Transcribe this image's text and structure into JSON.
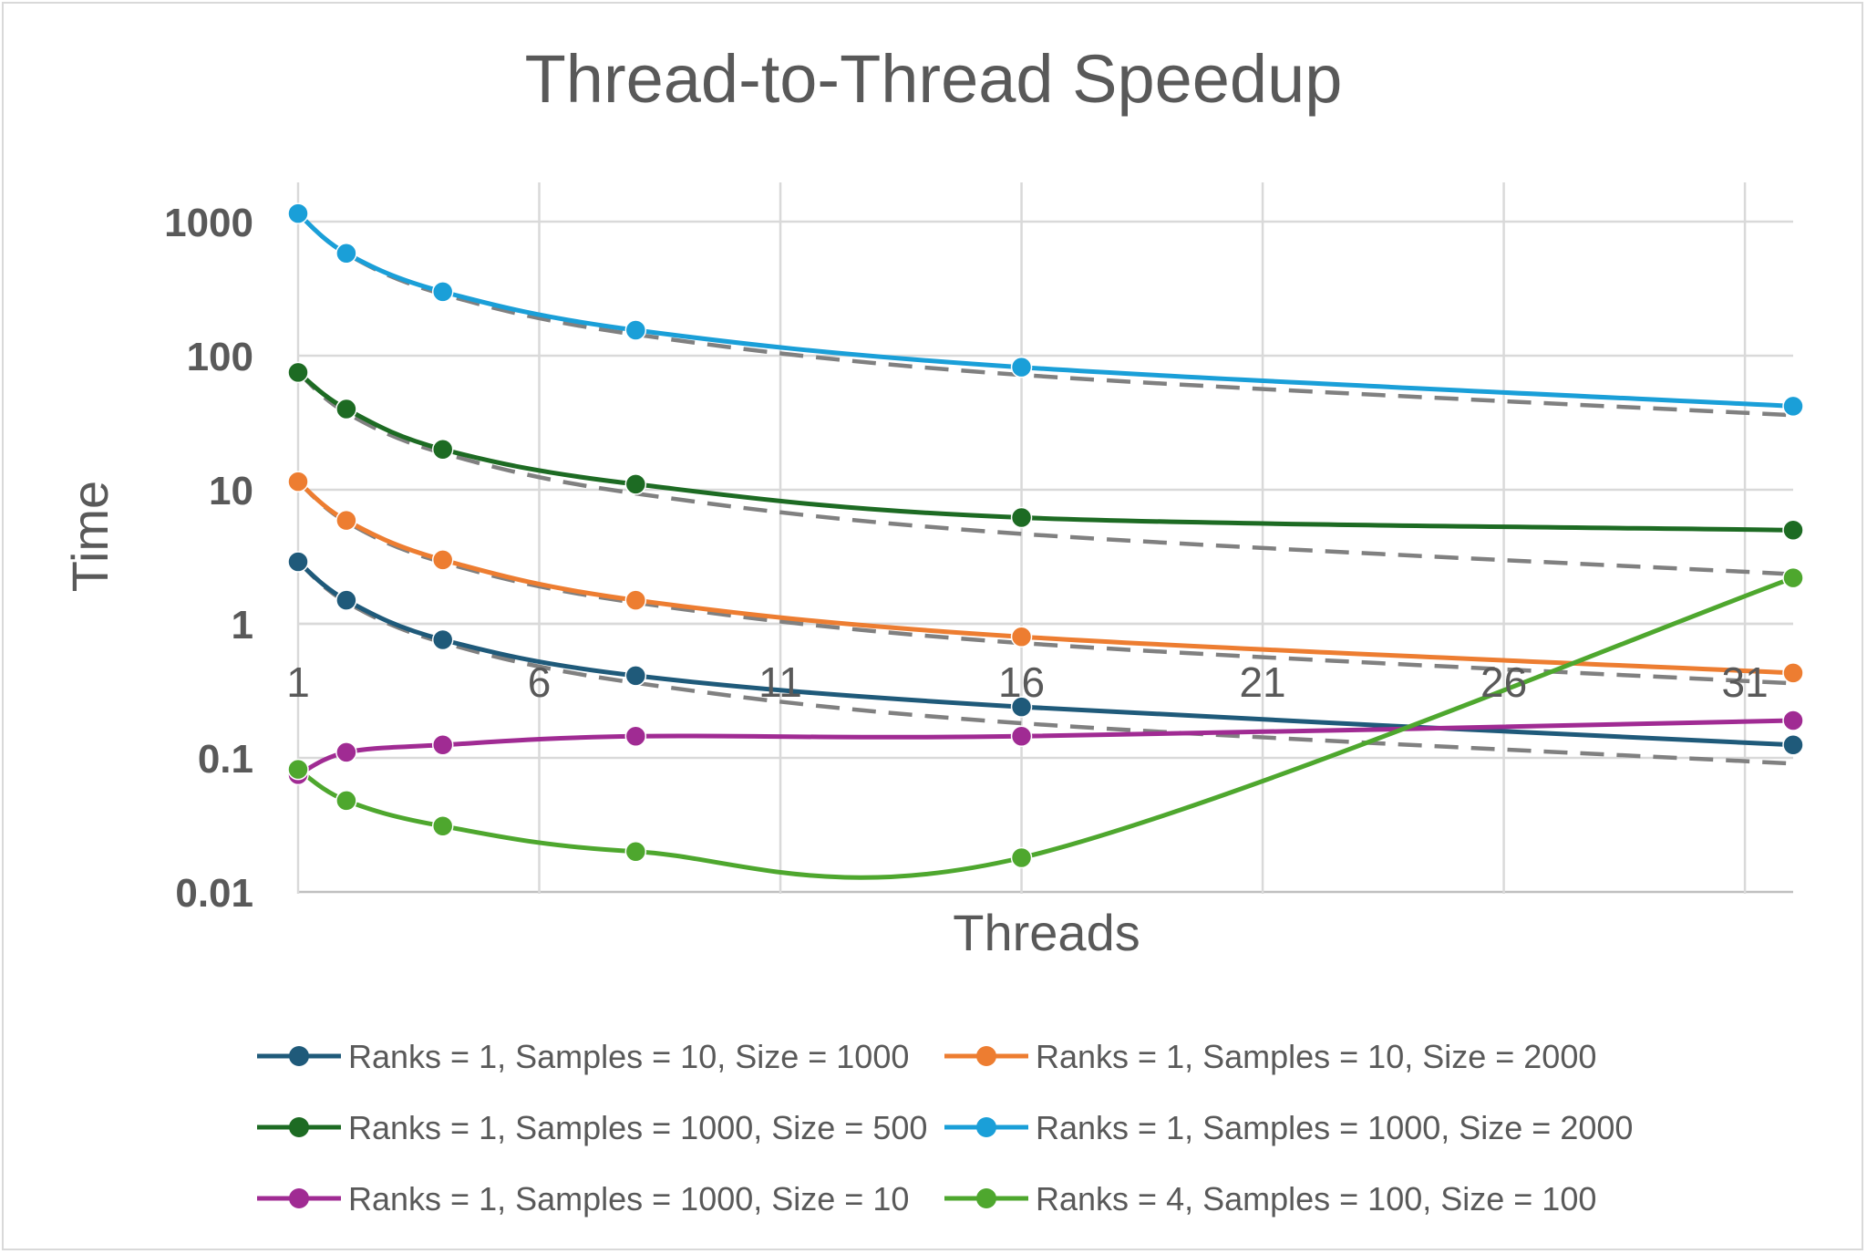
{
  "chart_data": {
    "type": "line",
    "title": "Thread-to-Thread Speedup",
    "xlabel": "Threads",
    "ylabel": "Time",
    "x_scale": "linear",
    "y_scale": "log",
    "xlim": [
      1,
      32
    ],
    "ylim": [
      0.01,
      1000
    ],
    "x_ticks": [
      "1",
      "6",
      "11",
      "16",
      "21",
      "26",
      "31"
    ],
    "y_ticks": [
      "0.01",
      "0.1",
      "1",
      "10",
      "100",
      "1000"
    ],
    "grid": true,
    "legend_position": "bottom",
    "x": [
      1,
      2,
      4,
      8,
      16,
      32
    ],
    "series": [
      {
        "name": "Ranks = 1, Samples = 10, Size = 1000",
        "color": "#1f5a7a",
        "values": [
          2.9,
          1.5,
          0.76,
          0.41,
          0.24,
          0.125
        ]
      },
      {
        "name": "Ranks = 1, Samples = 10, Size = 2000",
        "color": "#ed7d31",
        "values": [
          11.5,
          5.9,
          3.0,
          1.5,
          0.8,
          0.43
        ]
      },
      {
        "name": "Ranks = 1, Samples = 1000, Size = 500",
        "color": "#1d6b23",
        "values": [
          75,
          40,
          20,
          11,
          6.2,
          5.0
        ]
      },
      {
        "name": "Ranks = 1, Samples = 1000, Size = 2000",
        "color": "#1a9fd8",
        "values": [
          1150,
          580,
          300,
          155,
          82,
          42
        ]
      },
      {
        "name": "Ranks = 1, Samples = 1000, Size = 10",
        "color": "#a02b93",
        "values": [
          0.075,
          0.11,
          0.125,
          0.145,
          0.145,
          0.19
        ]
      },
      {
        "name": "Ranks = 4, Samples = 100, Size = 100",
        "color": "#4ea72e",
        "values": [
          0.082,
          0.048,
          0.031,
          0.02,
          0.018,
          2.2
        ]
      }
    ],
    "trendlines": {
      "style": "dashed",
      "color": "#808080",
      "series": [
        {
          "values": [
            2.9,
            1.45,
            0.725,
            0.3625,
            0.18125,
            0.090625
          ]
        },
        {
          "values": [
            11.5,
            5.75,
            2.875,
            1.4375,
            0.71875,
            0.359375
          ]
        },
        {
          "values": [
            75,
            37.5,
            18.75,
            9.375,
            4.6875,
            2.34375
          ]
        },
        {
          "values": [
            1150,
            575,
            287.5,
            143.75,
            71.875,
            35.9375
          ]
        }
      ]
    }
  }
}
